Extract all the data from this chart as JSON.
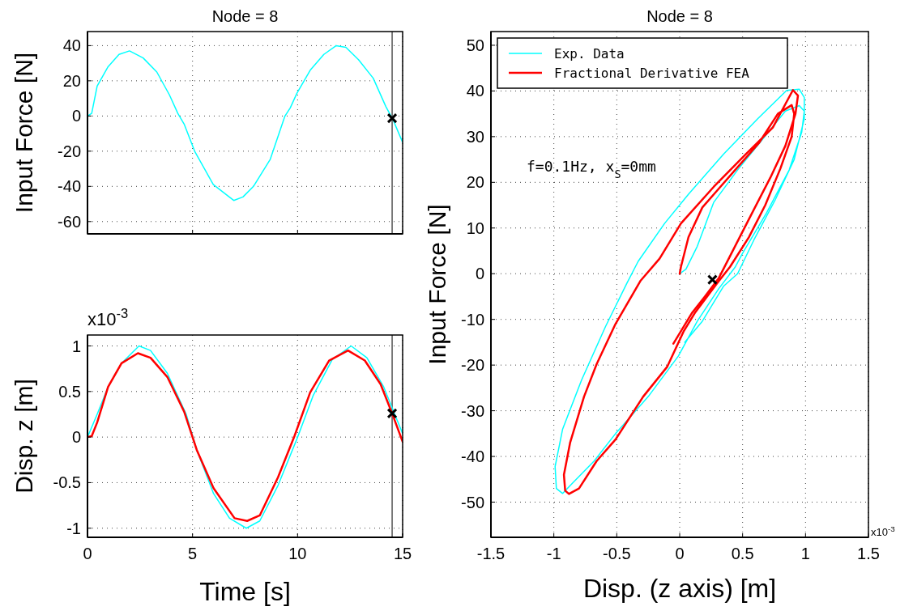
{
  "chart_data": [
    {
      "type": "line",
      "title": "Node = 8",
      "ylabel": "Input Force [N]",
      "xlim": [
        0,
        15
      ],
      "xticks": [
        0,
        5,
        10,
        15
      ],
      "ylim": [
        -67,
        48
      ],
      "yticks": [
        -60,
        -40,
        -20,
        0,
        20,
        40
      ],
      "grid": true,
      "tick_labels": "y",
      "series": [
        {
          "color": "#00ffff",
          "x": [
            0,
            0.2,
            0.46,
            0.98,
            1.5,
            2.0,
            2.65,
            3.3,
            3.9,
            4.3,
            4.6,
            5.1,
            5.99,
            6.96,
            7.4,
            7.9,
            8.7,
            9.4,
            9.65,
            9.97,
            10.6,
            11.25,
            11.84,
            12.3,
            12.9,
            13.6,
            14.2,
            14.55,
            15
          ],
          "values": [
            0,
            1.5,
            17,
            28,
            35,
            37,
            33,
            25,
            12,
            1.5,
            -4.6,
            -20,
            -39,
            -48,
            -46,
            -40,
            -24.6,
            0,
            4.6,
            13,
            26,
            35,
            40,
            39,
            32,
            21.5,
            5.4,
            -2.3,
            -15
          ]
        },
        {
          "type": "scatter",
          "marker": "cross",
          "color": "#000000",
          "x": [
            14.5
          ],
          "values": [
            -1.3
          ]
        }
      ],
      "ref_lines": [
        {
          "axis": "x",
          "value": 14.5,
          "color": "#000000"
        }
      ]
    },
    {
      "type": "line",
      "xlabel": "Time [s]",
      "ylabel": "Disp. z [m]",
      "xlim": [
        0,
        15
      ],
      "xticks": [
        0,
        5,
        10,
        15
      ],
      "ylim": [
        -1.1,
        1.12
      ],
      "yticks": [
        -1,
        -0.5,
        0,
        0.5,
        1
      ],
      "grid": true,
      "annotations": [
        "x10$^{-3}$"
      ],
      "series": [
        {
          "color": "#00ffff",
          "x": [
            0,
            0.46,
            0.98,
            1.62,
            2.45,
            3.0,
            3.8,
            4.7,
            5.2,
            6.0,
            6.76,
            7.56,
            8.2,
            9.07,
            9.97,
            10.75,
            11.65,
            12.55,
            13.3,
            14.1,
            14.73,
            15
          ],
          "values": [
            0,
            0.25,
            0.55,
            0.81,
            1.0,
            0.95,
            0.7,
            0.25,
            -0.14,
            -0.62,
            -0.89,
            -1.0,
            -0.92,
            -0.53,
            -0.02,
            0.46,
            0.85,
            1.0,
            0.87,
            0.55,
            0.19,
            0.04
          ]
        },
        {
          "color": "#ff0000",
          "x": [
            0,
            0.2,
            0.46,
            0.98,
            1.62,
            2.4,
            3.0,
            3.8,
            4.6,
            5.2,
            6.0,
            7.0,
            7.6,
            8.2,
            9.07,
            9.85,
            10.6,
            11.5,
            12.4,
            13.2,
            13.95,
            14.5,
            15
          ],
          "values": [
            0,
            0.01,
            0.16,
            0.55,
            0.81,
            0.92,
            0.87,
            0.66,
            0.28,
            -0.14,
            -0.56,
            -0.89,
            -0.92,
            -0.86,
            -0.44,
            0.01,
            0.49,
            0.84,
            0.95,
            0.84,
            0.58,
            0.26,
            -0.05
          ]
        },
        {
          "type": "scatter",
          "marker": "cross",
          "color": "#000000",
          "x": [
            14.5
          ],
          "values": [
            0.26
          ]
        }
      ],
      "ref_lines": [
        {
          "axis": "x",
          "value": 14.5,
          "color": "#000000"
        }
      ]
    },
    {
      "type": "line",
      "title": "Node = 8",
      "xlabel": "Disp. (z axis) [m]",
      "ylabel": "Input Force [N]",
      "xlim": [
        -1.5,
        1.5
      ],
      "xticks": [
        -1.5,
        -1,
        -0.5,
        0,
        0.5,
        1,
        1.5
      ],
      "ylim": [
        -57.7,
        53
      ],
      "yticks": [
        -50,
        -40,
        -30,
        -20,
        -10,
        0,
        10,
        20,
        30,
        40,
        50
      ],
      "grid": true,
      "legend": "top left",
      "annotations": [
        "f=0.1Hz, x$_{S}$=0mm",
        "x10$^{-3}$"
      ],
      "series": [
        {
          "name": "Exp. Data",
          "color": "#00ffff",
          "x": [
            0,
            0.05,
            0.14,
            0.27,
            0.46,
            0.67,
            0.84,
            0.95,
            0.99,
            0.97,
            0.87,
            0.69,
            0.5,
            0.44,
            0.31,
            0.14,
            -0.01,
            -0.25,
            -0.51,
            -0.68,
            -0.85,
            -0.93,
            -0.98,
            -0.99,
            -0.93,
            -0.78,
            -0.59,
            -0.42,
            -0.33,
            -0.12,
            0.07,
            0.35,
            0.62,
            0.85,
            0.95,
            0.99,
            0.99,
            0.91,
            0.76,
            0.59,
            0.46,
            0.35,
            0.18,
            0.04
          ],
          "values": [
            0,
            1,
            6,
            15.6,
            22.7,
            29.8,
            35.6,
            36.8,
            35.6,
            31,
            22.7,
            13.3,
            4.5,
            1.4,
            -3.3,
            -10.4,
            -18,
            -26.9,
            -35,
            -41,
            -45.8,
            -48.1,
            -47,
            -42.2,
            -34,
            -23.3,
            -11.6,
            -2.1,
            2.7,
            11,
            17.4,
            26.2,
            33.9,
            40.1,
            40.4,
            38.6,
            33.9,
            25,
            16.2,
            7.4,
            0,
            -2.7,
            -10.4,
            -15
          ]
        },
        {
          "name": "Fractional Derivative FEA",
          "color": "#ff0000",
          "x": [
            0,
            0.01,
            0.07,
            0.18,
            0.31,
            0.46,
            0.63,
            0.78,
            0.89,
            0.91,
            0.89,
            0.8,
            0.68,
            0.55,
            0.4,
            0.3,
            0.12,
            0.03,
            -0.1,
            -0.29,
            -0.51,
            -0.66,
            -0.8,
            -0.88,
            -0.91,
            -0.92,
            -0.87,
            -0.76,
            -0.66,
            -0.51,
            -0.31,
            -0.16,
            0.01,
            0.27,
            0.52,
            0.74,
            0.9,
            0.94,
            0.92,
            0.84,
            0.72,
            0.57,
            0.44,
            0.31,
            0.2,
            0.1,
            -0.05
          ],
          "values": [
            0,
            1.5,
            8,
            14.5,
            18.6,
            23.3,
            28.6,
            35,
            36.9,
            35,
            30,
            23,
            15,
            8,
            1.5,
            -2,
            -8.6,
            -12.7,
            -20.4,
            -26.9,
            -36.3,
            -41,
            -47,
            -48.2,
            -47.5,
            -44,
            -36.9,
            -26.9,
            -19.8,
            -11,
            -1.5,
            3.3,
            11,
            19,
            26,
            32,
            40.2,
            39,
            35,
            28,
            21,
            13,
            6,
            -1,
            -5,
            -8.5,
            -15.3
          ]
        },
        {
          "type": "scatter",
          "marker": "cross",
          "color": "#000000",
          "x": [
            0.26
          ],
          "values": [
            -1.3
          ]
        }
      ]
    }
  ]
}
